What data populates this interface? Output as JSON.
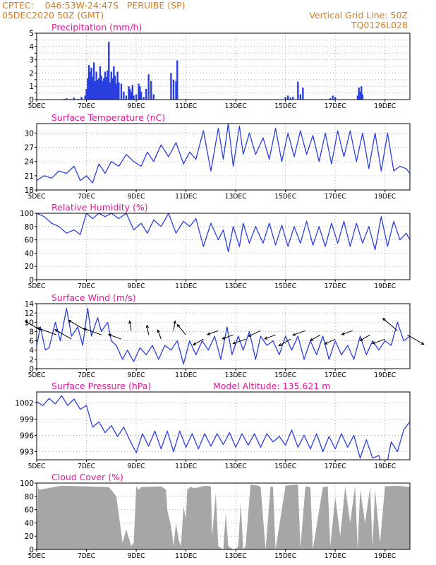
{
  "header": {
    "line1_left": "CPTEC:    046:53W-24:47S   PERUIBE (SP)",
    "line2_left": "05DEC2020 50Z (GMT)",
    "line2_right": "Vertical Grid Line: 50Z",
    "line3_right": "TQ0126L028"
  },
  "colors": {
    "header": "#e07a12",
    "panel_title": "#e0189a",
    "series": "#2a3fe0",
    "cloud": "#a6a6a6",
    "frame": "#000000"
  },
  "x_axis": {
    "tick_labels": [
      "5DEC",
      "7DEC",
      "9DEC",
      "11DEC",
      "13DEC",
      "15DEC",
      "17DEC",
      "19DEC"
    ],
    "tick_days": [
      0,
      2,
      4,
      6,
      8,
      10,
      12,
      14
    ],
    "days_shown": 15
  },
  "chart_data": [
    {
      "id": "precip",
      "type": "bar",
      "title": "Precipitation (mm/h)",
      "ylim": [
        0,
        5
      ],
      "yticks": [
        0,
        0.5,
        1,
        1.5,
        2,
        2.5,
        3,
        3.5,
        4,
        4.5,
        5
      ],
      "ytick_labels": [
        "0",
        "",
        "1",
        "",
        "2",
        "",
        "3",
        "",
        "4",
        "",
        "5"
      ],
      "x_days": [
        1.1,
        1.2,
        1.35,
        1.5,
        1.65,
        1.8,
        1.95,
        2.0,
        2.05,
        2.1,
        2.15,
        2.2,
        2.25,
        2.3,
        2.35,
        2.4,
        2.45,
        2.5,
        2.55,
        2.6,
        2.65,
        2.7,
        2.75,
        2.8,
        2.85,
        2.9,
        2.95,
        3.0,
        3.05,
        3.1,
        3.15,
        3.2,
        3.25,
        3.3,
        3.4,
        3.5,
        3.6,
        3.7,
        3.75,
        3.8,
        3.85,
        3.9,
        4.0,
        4.1,
        4.15,
        4.2,
        4.3,
        4.4,
        4.5,
        4.6,
        4.7,
        5.4,
        5.5,
        5.6,
        5.65,
        10.0,
        10.1,
        10.2,
        10.3,
        10.5,
        10.6,
        10.7,
        11.8,
        11.9,
        12.0,
        12.9,
        12.95,
        13.0,
        13.05,
        13.1
      ],
      "values": [
        0.05,
        0.1,
        0.05,
        0.15,
        0.05,
        0.2,
        0.3,
        0.8,
        1.6,
        2.6,
        2.1,
        2.4,
        1.7,
        2.8,
        1.4,
        2.1,
        1.5,
        1.6,
        2.5,
        1.8,
        1.4,
        1.6,
        2.1,
        1.7,
        2.2,
        4.35,
        1.3,
        2.1,
        1.6,
        2.5,
        1.8,
        1.2,
        2.1,
        1.3,
        1.2,
        0.6,
        0.3,
        1.0,
        0.8,
        0.6,
        1.1,
        0.3,
        0.4,
        1.2,
        1.0,
        0.6,
        0.2,
        0.8,
        1.9,
        1.4,
        0.4,
        2.0,
        1.5,
        1.4,
        2.95,
        0.2,
        0.3,
        0.15,
        0.2,
        1.35,
        0.4,
        0.9,
        0.1,
        0.3,
        0.2,
        0.3,
        0.9,
        0.6,
        1.0,
        0.4
      ]
    },
    {
      "id": "temp",
      "type": "line",
      "title": "Surface Temperature (nC)",
      "ylim": [
        18,
        32
      ],
      "yticks": [
        18,
        21,
        24,
        27,
        30
      ],
      "ytick_labels": [
        "18",
        "21",
        "24",
        "27",
        "30"
      ],
      "x_days": [
        0.0,
        0.3,
        0.6,
        0.9,
        1.2,
        1.5,
        1.75,
        2.0,
        2.25,
        2.5,
        2.75,
        3.0,
        3.3,
        3.6,
        3.9,
        4.2,
        4.45,
        4.7,
        5.0,
        5.3,
        5.6,
        5.9,
        6.15,
        6.4,
        6.7,
        7.0,
        7.3,
        7.5,
        7.7,
        7.9,
        8.15,
        8.3,
        8.55,
        8.8,
        9.1,
        9.35,
        9.6,
        9.85,
        10.1,
        10.35,
        10.6,
        10.85,
        11.1,
        11.35,
        11.6,
        11.85,
        12.1,
        12.35,
        12.6,
        12.85,
        13.1,
        13.35,
        13.6,
        13.85,
        14.1,
        14.35,
        14.6,
        14.85,
        15.0
      ],
      "values": [
        20.0,
        21.0,
        20.5,
        22.0,
        21.5,
        23.0,
        20.0,
        21.0,
        19.5,
        23.5,
        21.5,
        24.0,
        23.0,
        25.5,
        24.0,
        23.0,
        26.0,
        24.0,
        27.5,
        25.0,
        28.0,
        23.5,
        26.0,
        24.5,
        30.5,
        22.0,
        31.0,
        24.5,
        32.0,
        23.0,
        31.5,
        25.5,
        30.0,
        25.5,
        29.0,
        24.5,
        31.0,
        24.0,
        30.0,
        25.0,
        30.5,
        25.5,
        29.5,
        24.0,
        30.0,
        23.5,
        30.5,
        25.0,
        30.5,
        24.0,
        30.0,
        22.5,
        30.0,
        22.0,
        30.0,
        22.0,
        23.0,
        22.5,
        21.5
      ]
    },
    {
      "id": "rh",
      "type": "line",
      "title": "Relative Humidity (%)",
      "ylim": [
        0,
        100
      ],
      "yticks": [
        0,
        20,
        40,
        60,
        80,
        100
      ],
      "ytick_labels": [
        "0",
        "20",
        "40",
        "60",
        "80",
        "100"
      ],
      "x_days": [
        0.0,
        0.3,
        0.6,
        0.9,
        1.2,
        1.5,
        1.75,
        2.0,
        2.25,
        2.5,
        2.75,
        3.0,
        3.3,
        3.6,
        3.9,
        4.2,
        4.45,
        4.7,
        5.0,
        5.3,
        5.6,
        5.9,
        6.15,
        6.4,
        6.7,
        7.0,
        7.3,
        7.5,
        7.7,
        7.9,
        8.15,
        8.3,
        8.55,
        8.8,
        9.1,
        9.35,
        9.6,
        9.85,
        10.1,
        10.35,
        10.6,
        10.85,
        11.1,
        11.35,
        11.6,
        11.85,
        12.1,
        12.35,
        12.6,
        12.85,
        13.1,
        13.35,
        13.6,
        13.85,
        14.1,
        14.35,
        14.6,
        14.85,
        15.0
      ],
      "values": [
        100,
        95,
        85,
        80,
        70,
        75,
        68,
        100,
        92,
        100,
        95,
        100,
        92,
        100,
        75,
        85,
        70,
        90,
        80,
        100,
        70,
        88,
        80,
        92,
        50,
        85,
        60,
        75,
        42,
        80,
        50,
        85,
        55,
        80,
        55,
        85,
        52,
        82,
        50,
        80,
        55,
        88,
        52,
        80,
        50,
        85,
        55,
        88,
        50,
        85,
        55,
        80,
        45,
        95,
        50,
        88,
        60,
        70,
        60
      ]
    },
    {
      "id": "wind",
      "type": "line",
      "title": "Surface Wind (m/s)",
      "ylim": [
        0,
        14
      ],
      "yticks": [
        0,
        2,
        4,
        6,
        8,
        10,
        12,
        14
      ],
      "ytick_labels": [
        "0",
        "2",
        "4",
        "6",
        "8",
        "10",
        "12",
        "14"
      ],
      "x_days": [
        0.0,
        0.15,
        0.35,
        0.5,
        0.75,
        0.95,
        1.2,
        1.4,
        1.65,
        1.85,
        2.05,
        2.2,
        2.45,
        2.6,
        2.85,
        3.0,
        3.2,
        3.45,
        3.65,
        3.9,
        4.15,
        4.4,
        4.65,
        4.9,
        5.15,
        5.4,
        5.65,
        5.9,
        6.15,
        6.4,
        6.65,
        6.9,
        7.15,
        7.4,
        7.65,
        7.85,
        8.1,
        8.3,
        8.55,
        8.8,
        9.0,
        9.25,
        9.5,
        9.75,
        10.0,
        10.25,
        10.5,
        10.75,
        11.0,
        11.25,
        11.5,
        11.75,
        12.0,
        12.25,
        12.5,
        12.75,
        13.0,
        13.25,
        13.5,
        13.75,
        14.0,
        14.25,
        14.5,
        14.75,
        15.0
      ],
      "values": [
        5,
        9,
        4,
        4.5,
        10,
        6,
        13,
        7,
        9,
        5,
        13,
        7,
        11,
        8,
        10,
        6,
        5,
        2,
        4,
        1.5,
        4.5,
        3,
        5,
        2,
        5,
        4,
        6,
        1,
        6,
        3,
        6,
        4,
        7,
        2,
        9,
        3,
        7,
        4,
        8,
        2,
        7,
        5,
        6,
        3,
        7,
        4,
        7,
        2,
        6,
        3,
        7,
        2,
        6,
        3,
        5,
        2,
        7,
        3,
        6,
        4,
        6,
        5,
        10,
        6,
        7
      ]
    },
    {
      "id": "pressure",
      "type": "line",
      "title": "Surface Pressure (hPa)",
      "annotation": "Model Altitude: 135.621 m",
      "ylim": [
        991.5,
        1004
      ],
      "yticks": [
        993,
        996,
        999,
        1002
      ],
      "ytick_labels": [
        "993",
        "996",
        "999",
        "1002"
      ],
      "x_days": [
        0.0,
        0.25,
        0.5,
        0.75,
        1.0,
        1.25,
        1.5,
        1.75,
        2.0,
        2.25,
        2.5,
        2.75,
        3.0,
        3.25,
        3.5,
        3.75,
        4.0,
        4.25,
        4.5,
        4.75,
        5.0,
        5.25,
        5.5,
        5.75,
        6.0,
        6.25,
        6.5,
        6.75,
        7.0,
        7.25,
        7.5,
        7.75,
        8.0,
        8.25,
        8.5,
        8.75,
        9.0,
        9.25,
        9.5,
        9.75,
        10.0,
        10.25,
        10.5,
        10.75,
        11.0,
        11.25,
        11.5,
        11.75,
        12.0,
        12.25,
        12.5,
        12.75,
        13.0,
        13.25,
        13.5,
        13.75,
        14.0,
        14.25,
        14.5,
        14.75,
        15.0
      ],
      "values": [
        1002.2,
        1001.5,
        1002.8,
        1001.8,
        1003.3,
        1001.5,
        1002.7,
        1000.8,
        1001.5,
        997.5,
        998.5,
        996.5,
        997.8,
        995.8,
        997.5,
        995.0,
        992.8,
        996.3,
        994.0,
        996.8,
        993.5,
        996.8,
        993.0,
        996.8,
        993.8,
        996.3,
        993.5,
        996.3,
        994.0,
        996.3,
        994.3,
        996.5,
        993.8,
        996.3,
        994.2,
        996.3,
        993.8,
        996.3,
        994.8,
        995.8,
        994.2,
        997.0,
        993.8,
        996.0,
        993.5,
        996.3,
        993.0,
        995.8,
        993.5,
        996.3,
        993.8,
        996.0,
        991.8,
        995.2,
        991.8,
        992.3,
        989.0,
        994.8,
        993.0,
        997.0,
        998.5
      ]
    },
    {
      "id": "cloud",
      "type": "area",
      "title": "Cloud Cover (%)",
      "ylim": [
        0,
        100
      ],
      "yticks": [
        0,
        20,
        40,
        60,
        80,
        100
      ],
      "ytick_labels": [
        "0",
        "20",
        "40",
        "60",
        "80",
        "100"
      ],
      "x_days": [
        0.0,
        0.05,
        0.1,
        1.0,
        2.0,
        2.9,
        3.2,
        3.4,
        3.45,
        3.6,
        3.8,
        3.9,
        4.0,
        4.1,
        4.2,
        5.0,
        5.2,
        5.25,
        5.4,
        5.5,
        5.6,
        5.7,
        5.8,
        5.9,
        6.0,
        6.05,
        6.2,
        6.3,
        6.8,
        7.0,
        7.05,
        7.2,
        7.3,
        7.5,
        7.6,
        7.7,
        7.9,
        8.0,
        8.1,
        8.2,
        8.3,
        8.4,
        8.5,
        8.6,
        8.9,
        9.0,
        9.2,
        9.4,
        9.5,
        9.6,
        10.0,
        10.5,
        10.6,
        10.8,
        11.0,
        11.1,
        11.5,
        11.7,
        11.8,
        12.0,
        12.2,
        12.4,
        12.6,
        12.8,
        12.9,
        13.0,
        13.2,
        13.4,
        13.5,
        13.6,
        13.8,
        14.0,
        14.5,
        14.8,
        15.0
      ],
      "values": [
        0,
        95,
        90,
        96,
        95,
        94,
        80,
        25,
        10,
        30,
        5,
        10,
        95,
        90,
        94,
        95,
        90,
        60,
        35,
        5,
        40,
        15,
        5,
        65,
        45,
        90,
        95,
        92,
        96,
        95,
        20,
        85,
        5,
        0,
        55,
        5,
        0,
        0,
        5,
        70,
        0,
        5,
        55,
        98,
        96,
        94,
        0,
        95,
        94,
        0,
        96,
        98,
        2,
        95,
        94,
        0,
        94,
        95,
        5,
        80,
        20,
        95,
        40,
        96,
        0,
        90,
        40,
        94,
        5,
        90,
        10,
        95,
        96,
        95,
        94
      ]
    },
    {
      "id": "wind_arrows",
      "type": "scatter",
      "title": "",
      "x_days": [
        0.2,
        0.8,
        1.4,
        2.0,
        2.6,
        3.4,
        3.8,
        4.5,
        5.0,
        5.5,
        6.0,
        6.7,
        7.3,
        7.9,
        8.4,
        9.0,
        9.6,
        10.2,
        10.8,
        11.4,
        12.0,
        12.7,
        13.4,
        14.0,
        14.5,
        14.9
      ],
      "speed": [
        8,
        9,
        8,
        9,
        8,
        5,
        3,
        3,
        3,
        3,
        5,
        4,
        4,
        4,
        5,
        5,
        4,
        5,
        5,
        4,
        4,
        4,
        4,
        5,
        8,
        8
      ],
      "dir_deg": [
        150,
        160,
        150,
        150,
        160,
        160,
        100,
        100,
        110,
        80,
        130,
        210,
        200,
        200,
        200,
        205,
        200,
        210,
        200,
        210,
        205,
        200,
        210,
        200,
        140,
        330
      ]
    }
  ]
}
